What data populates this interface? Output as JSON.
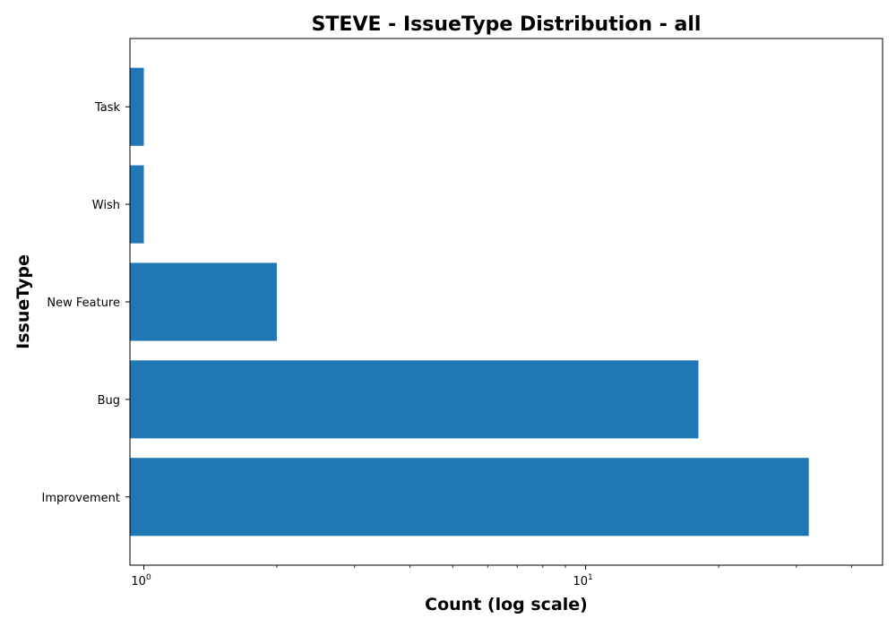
{
  "chart_data": {
    "type": "bar",
    "orientation": "horizontal",
    "title": "STEVE - IssueType Distribution - all",
    "xlabel": "Count (log scale)",
    "ylabel": "IssueType",
    "x_scale": "log",
    "xlim": [
      0.93,
      47
    ],
    "x_tick_base": "10",
    "x_ticks": [
      {
        "value": 1,
        "exponent": "0"
      },
      {
        "value": 10,
        "exponent": "1"
      }
    ],
    "categories": [
      "Improvement",
      "Bug",
      "New Feature",
      "Wish",
      "Task"
    ],
    "values": [
      32,
      18,
      2,
      1,
      1
    ],
    "color": "#1f77b4",
    "grid": false,
    "legend": "none"
  }
}
